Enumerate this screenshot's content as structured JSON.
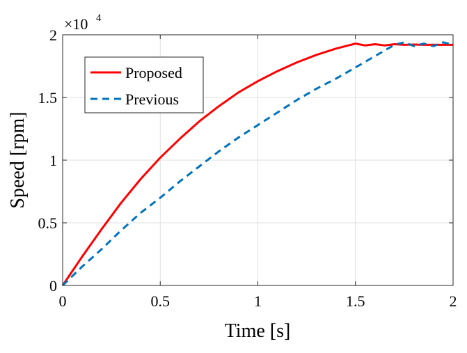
{
  "chart_data": {
    "type": "line",
    "xlabel": "Time [s]",
    "ylabel": "Speed [rpm]",
    "xlim": [
      0,
      2
    ],
    "ylim": [
      0,
      20000
    ],
    "x_ticks": [
      "0",
      "0.5",
      "1",
      "1.5",
      "2"
    ],
    "y_ticks": [
      "0",
      "0.5",
      "1",
      "1.5",
      "2"
    ],
    "y_multiplier": {
      "base": "×10",
      "exponent": "4"
    },
    "grid": true,
    "legend_position": "top-left",
    "series": [
      {
        "name": "Proposed",
        "color": "#ff0000",
        "style": "solid",
        "x": [
          0,
          0.1,
          0.2,
          0.3,
          0.4,
          0.5,
          0.6,
          0.7,
          0.8,
          0.9,
          1.0,
          1.1,
          1.2,
          1.3,
          1.4,
          1.5,
          1.55,
          1.6,
          1.65,
          1.7,
          1.75,
          1.8,
          1.85,
          1.9,
          1.95,
          2.0
        ],
        "y": [
          0,
          2300,
          4500,
          6600,
          8500,
          10200,
          11700,
          13100,
          14300,
          15400,
          16300,
          17100,
          17800,
          18400,
          18900,
          19300,
          19150,
          19250,
          19150,
          19250,
          19200,
          19220,
          19200,
          19210,
          19200,
          19200
        ]
      },
      {
        "name": "Previous",
        "color": "#0072bd",
        "style": "dashed",
        "x": [
          0,
          0.1,
          0.2,
          0.3,
          0.4,
          0.5,
          0.6,
          0.7,
          0.8,
          0.9,
          1.0,
          1.1,
          1.2,
          1.3,
          1.4,
          1.5,
          1.6,
          1.7,
          1.75,
          1.8,
          1.85,
          1.9,
          1.95,
          2.0
        ],
        "y": [
          0,
          1500,
          2900,
          4400,
          5800,
          7000,
          8300,
          9500,
          10700,
          11800,
          12800,
          13800,
          14800,
          15700,
          16500,
          17400,
          18300,
          19200,
          19400,
          19100,
          19300,
          19100,
          19400,
          19200
        ]
      }
    ]
  }
}
